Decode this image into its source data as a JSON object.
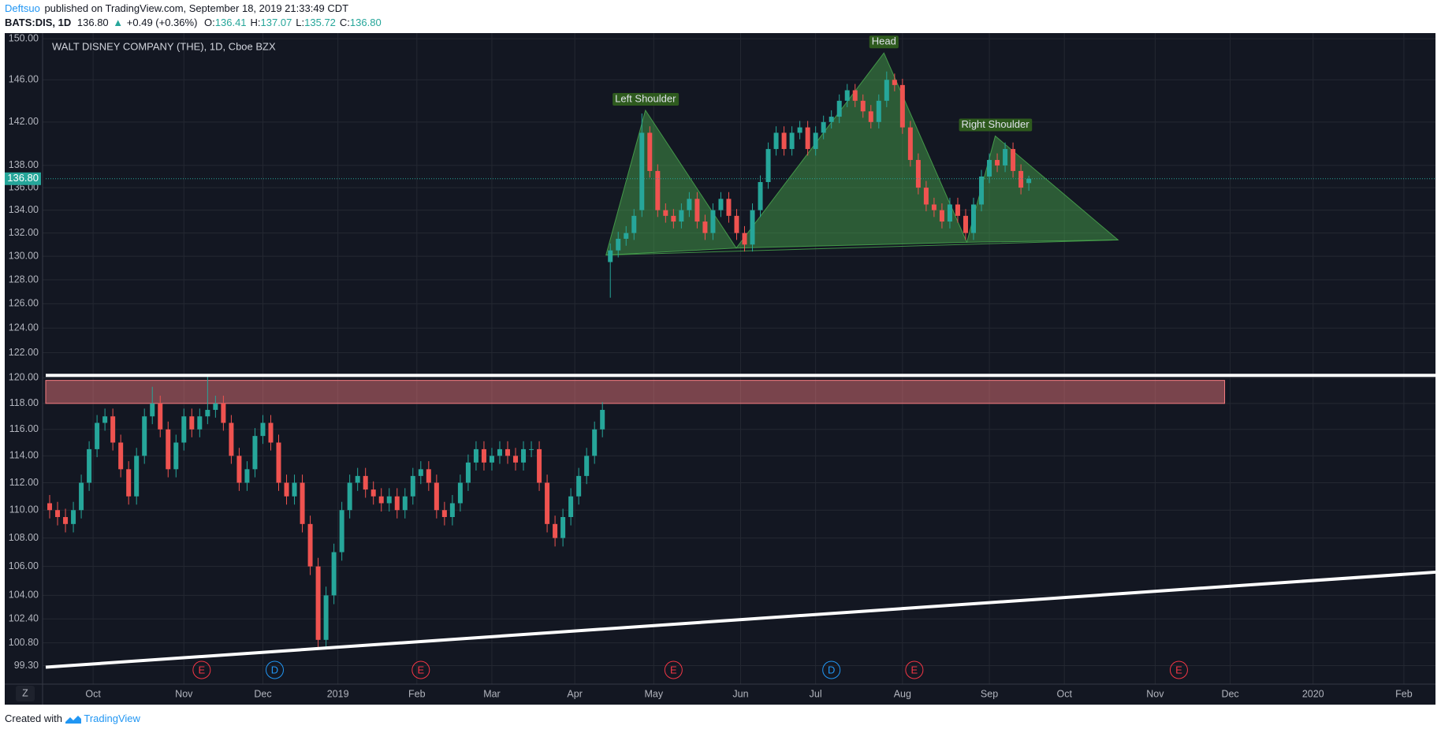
{
  "header": {
    "author": "Deftsuo",
    "published": "published on TradingView.com, September 18, 2019 21:33:49 CDT",
    "quote": {
      "symbol": "BATS:DIS, 1D",
      "last": "136.80",
      "change": "+0.49 (+0.36%)",
      "ohlc": [
        {
          "label": "O:",
          "value": "136.41"
        },
        {
          "label": "H:",
          "value": "137.07"
        },
        {
          "label": "L:",
          "value": "135.72"
        },
        {
          "label": "C:",
          "value": "136.80"
        }
      ]
    }
  },
  "footer": {
    "created": "Created with",
    "brand": "TradingView"
  },
  "controls": {
    "zoom": "Z"
  },
  "chart_data": {
    "type": "candlestick",
    "title": "WALT DISNEY COMPANY (THE), 1D, Cboe BZX",
    "x": [
      1,
      3,
      5,
      7,
      9,
      11,
      13,
      15,
      17,
      19,
      21,
      23,
      25,
      27,
      29,
      31,
      33,
      35,
      37,
      39,
      41,
      43,
      45,
      47,
      49,
      51,
      53,
      55,
      57,
      59,
      61,
      63,
      65,
      67,
      69,
      71,
      73,
      75,
      77,
      79,
      81,
      83,
      85,
      87,
      89,
      91,
      93,
      95,
      97,
      99,
      101,
      103,
      105,
      107,
      109,
      111,
      113,
      115,
      117,
      119,
      121,
      123,
      125,
      127,
      129,
      131,
      133,
      135,
      137,
      139,
      141,
      143,
      145,
      147,
      149,
      151,
      153,
      155,
      157,
      159,
      161,
      163,
      165,
      167,
      169,
      171,
      173,
      175,
      177,
      179,
      181,
      183,
      185,
      187,
      189,
      191,
      193,
      195,
      197,
      199,
      201,
      203,
      205,
      207,
      209,
      211,
      213,
      215,
      217,
      219,
      221,
      223,
      225,
      227,
      229,
      231,
      233,
      235,
      237,
      239,
      241,
      243,
      245,
      247,
      249
    ],
    "open": [
      110.5,
      110,
      109.5,
      109,
      110,
      112,
      114.5,
      116.5,
      117,
      115,
      113,
      111,
      114,
      117,
      118,
      116,
      113,
      115,
      117,
      116,
      117,
      117.5,
      118,
      116.5,
      114,
      112,
      113,
      115.5,
      116.5,
      115,
      112,
      111,
      112,
      109,
      106,
      101,
      104,
      107,
      110,
      112,
      112.5,
      111.5,
      111,
      110.5,
      111,
      110,
      111,
      112.5,
      113,
      112,
      110,
      109.5,
      110.5,
      112,
      113.5,
      114.5,
      113.5,
      114,
      114.5,
      114,
      113.5,
      114.5,
      114.5,
      112,
      109,
      108,
      109.5,
      111,
      112.5,
      114,
      116,
      129.5,
      130.5,
      131.5,
      132,
      134,
      141,
      137.5,
      134,
      133.5,
      133,
      134,
      135,
      133,
      132,
      134,
      135,
      133.5,
      132,
      131,
      134,
      136.5,
      139.5,
      141,
      139.5,
      141,
      141.5,
      139.5,
      141,
      142,
      142.5,
      144,
      145,
      144,
      143,
      142,
      144,
      146,
      145.5,
      141.5,
      138.5,
      136,
      134.5,
      134,
      133,
      134.5,
      133.5,
      132,
      134.5,
      137,
      138.5,
      138,
      139.5,
      137.5,
      136.41
    ],
    "high": [
      111.1,
      110.6,
      110.1,
      110.6,
      112.6,
      115.1,
      117.1,
      117.6,
      117.6,
      115.6,
      113.6,
      114.6,
      117.6,
      119.3,
      118.6,
      116.6,
      115.6,
      117.6,
      117.6,
      117.6,
      120.1,
      118.6,
      118.6,
      117.1,
      114.6,
      113.6,
      116.1,
      117.1,
      117.1,
      115.6,
      112.6,
      112.6,
      112.6,
      109.6,
      106.6,
      104.6,
      107.6,
      110.6,
      112.6,
      113.1,
      113.1,
      112.1,
      111.6,
      111.6,
      111.6,
      111.6,
      113.1,
      113.6,
      113.6,
      112.6,
      110.6,
      111.1,
      112.6,
      114.1,
      115.1,
      115.1,
      114.6,
      115.1,
      115.1,
      114.6,
      115.1,
      115.1,
      115.1,
      112.6,
      109.6,
      110.1,
      111.6,
      113.1,
      114.6,
      116.6,
      118.1,
      131.1,
      132.1,
      132.6,
      134.1,
      142.8,
      141.6,
      138.1,
      134.6,
      134.1,
      134.6,
      135.6,
      135.6,
      133.6,
      134.6,
      135.6,
      135.6,
      134.1,
      132.6,
      134.6,
      137.1,
      140.1,
      141.6,
      141.6,
      141.6,
      142.1,
      142.1,
      141.6,
      142.6,
      143.1,
      144.6,
      145.6,
      145.6,
      144.6,
      143.6,
      144.6,
      146.8,
      146.6,
      146.1,
      142.1,
      139.1,
      136.6,
      135.1,
      134.6,
      135.1,
      135.1,
      134.1,
      135.1,
      137.6,
      139.1,
      139.1,
      140.1,
      140.1,
      138.1,
      137.07
    ],
    "low": [
      109.4,
      108.9,
      108.4,
      108.4,
      109.4,
      111.4,
      113.9,
      115.9,
      114.4,
      112.4,
      110.4,
      110.4,
      113.4,
      116.4,
      115.4,
      112.4,
      112.4,
      114.4,
      115.4,
      115.4,
      116.4,
      116.9,
      115.9,
      113.4,
      111.4,
      111.4,
      112.4,
      114.9,
      114.4,
      111.4,
      110.4,
      110.4,
      108.4,
      105.4,
      100.4,
      100.4,
      103.4,
      106.4,
      109.4,
      111.4,
      110.9,
      110.4,
      109.9,
      109.9,
      109.4,
      109.4,
      110.4,
      111.9,
      111.4,
      109.4,
      108.9,
      108.9,
      109.9,
      111.4,
      112.9,
      112.9,
      112.9,
      113.4,
      113.4,
      112.9,
      112.9,
      113.9,
      111.4,
      108.4,
      107.4,
      107.4,
      108.9,
      110.4,
      111.9,
      113.4,
      115.4,
      126.5,
      129.9,
      130.9,
      131.4,
      133.4,
      136.9,
      133.4,
      132.9,
      132.4,
      132.4,
      133.4,
      132.4,
      131.4,
      131.4,
      133.4,
      132.9,
      131.4,
      130.4,
      130.4,
      133.4,
      135.9,
      138.9,
      138.9,
      138.9,
      140.4,
      138.9,
      138.9,
      140.4,
      141.4,
      141.9,
      143.4,
      143.4,
      142.4,
      141.4,
      141.4,
      143.4,
      144.9,
      140.9,
      137.9,
      135.4,
      133.9,
      133.4,
      132.4,
      132.4,
      132.9,
      131.4,
      131.4,
      133.9,
      136.4,
      137.4,
      137.4,
      136.9,
      135.4,
      135.72
    ],
    "close": [
      110,
      109.5,
      109,
      110,
      112,
      114.5,
      116.5,
      117,
      115,
      113,
      111,
      114,
      117,
      118,
      116,
      113,
      115,
      117,
      116,
      117,
      117.5,
      118,
      116.5,
      114,
      112,
      113,
      115.5,
      116.5,
      115,
      112,
      111,
      112,
      109,
      106,
      101,
      104,
      107,
      110,
      112,
      112.5,
      111.5,
      111,
      110.5,
      111,
      110,
      111,
      112.5,
      113,
      112,
      110,
      109.5,
      110.5,
      112,
      113.5,
      114.5,
      113.5,
      114,
      114.5,
      114,
      113.5,
      114.5,
      114.5,
      112,
      109,
      108,
      109.5,
      111,
      112.5,
      114,
      116,
      117.5,
      130.5,
      131.5,
      132,
      133.5,
      141,
      137.5,
      134,
      133.5,
      133,
      134,
      135,
      133,
      132,
      134,
      135,
      133.5,
      132,
      131,
      134,
      136.5,
      139.5,
      141,
      139.5,
      141,
      141.5,
      139.5,
      141,
      142,
      142.5,
      144,
      145,
      144,
      143,
      142,
      144,
      146,
      145.5,
      141.5,
      138.5,
      136,
      134.5,
      134,
      133,
      134.5,
      133.5,
      132,
      134.5,
      137,
      138.5,
      138,
      139.5,
      137.5,
      136,
      136.8
    ],
    "up_color": "#26a69a",
    "down_color": "#ef5350",
    "ylim": [
      98.1,
      150.4
    ],
    "log_scale": true,
    "yticks": [
      {
        "value": 99.3,
        "label": "99.30"
      },
      {
        "value": 100.8,
        "label": "100.80"
      },
      {
        "value": 102.4,
        "label": "102.40"
      },
      {
        "value": 104,
        "label": "104.00"
      },
      {
        "value": 106,
        "label": "106.00"
      },
      {
        "value": 108,
        "label": "108.00"
      },
      {
        "value": 110,
        "label": "110.00"
      },
      {
        "value": 112,
        "label": "112.00"
      },
      {
        "value": 114,
        "label": "114.00"
      },
      {
        "value": 116,
        "label": "116.00"
      },
      {
        "value": 118,
        "label": "118.00"
      },
      {
        "value": 120,
        "label": "120.00"
      },
      {
        "value": 122,
        "label": "122.00"
      },
      {
        "value": 124,
        "label": "124.00"
      },
      {
        "value": 126,
        "label": "126.00"
      },
      {
        "value": 128,
        "label": "128.00"
      },
      {
        "value": 130,
        "label": "130.00"
      },
      {
        "value": 132,
        "label": "132.00"
      },
      {
        "value": 134,
        "label": "134.00"
      },
      {
        "value": 136,
        "label": "136.00"
      },
      {
        "value": 138,
        "label": "138.00"
      },
      {
        "value": 142,
        "label": "142.00"
      },
      {
        "value": 146,
        "label": "146.00"
      },
      {
        "value": 150,
        "label": "150.00"
      }
    ],
    "xlim": [
      0,
      352
    ],
    "xticks": [
      {
        "value": 12,
        "label": "Oct"
      },
      {
        "value": 35,
        "label": "Nov"
      },
      {
        "value": 55,
        "label": "Dec"
      },
      {
        "value": 74,
        "label": "2019"
      },
      {
        "value": 94,
        "label": "Feb"
      },
      {
        "value": 113,
        "label": "Mar"
      },
      {
        "value": 134,
        "label": "Apr"
      },
      {
        "value": 154,
        "label": "May"
      },
      {
        "value": 176,
        "label": "Jun"
      },
      {
        "value": 195,
        "label": "Jul"
      },
      {
        "value": 217,
        "label": "Aug"
      },
      {
        "value": 239,
        "label": "Sep"
      },
      {
        "value": 258,
        "label": "Oct"
      },
      {
        "value": 281,
        "label": "Nov"
      },
      {
        "value": 300,
        "label": "Dec"
      },
      {
        "value": 321,
        "label": "2020"
      },
      {
        "value": 344,
        "label": "Feb"
      }
    ],
    "grid": true,
    "last_price": {
      "value": 136.8,
      "label": "136.80"
    },
    "patterns": [
      {
        "label": "Left Shoulder",
        "points": [
          [
            141.9,
            130.1
          ],
          [
            151.9,
            143.1
          ],
          [
            174.9,
            130.7
          ]
        ]
      },
      {
        "label": "Head",
        "points": [
          [
            174.9,
            130.7
          ],
          [
            212.3,
            148.6
          ],
          [
            233.3,
            131.2
          ]
        ]
      },
      {
        "label": "Right Shoulder",
        "points": [
          [
            233.3,
            131.2
          ],
          [
            240.5,
            140.7
          ],
          [
            271.6,
            131.4
          ]
        ]
      }
    ],
    "pattern_color": "#4caf50",
    "zones": [
      {
        "x": [
          0,
          298.6
        ],
        "y": [
          118,
          119.8
        ],
        "color": "#f77c80"
      }
    ],
    "lines": [
      {
        "x": [
          0,
          352
        ],
        "y": [
          120.2,
          120.2
        ]
      },
      {
        "x": [
          0,
          352
        ],
        "y": [
          99.2,
          105.6
        ]
      }
    ],
    "events": [
      {
        "label": "E",
        "x": 39.5
      },
      {
        "label": "D",
        "x": 58
      },
      {
        "label": "E",
        "x": 95
      },
      {
        "label": "E",
        "x": 159
      },
      {
        "label": "D",
        "x": 199
      },
      {
        "label": "E",
        "x": 220
      },
      {
        "label": "E",
        "x": 287
      }
    ],
    "event_colors": {
      "E": "#f23645",
      "D": "#2196f3"
    }
  }
}
